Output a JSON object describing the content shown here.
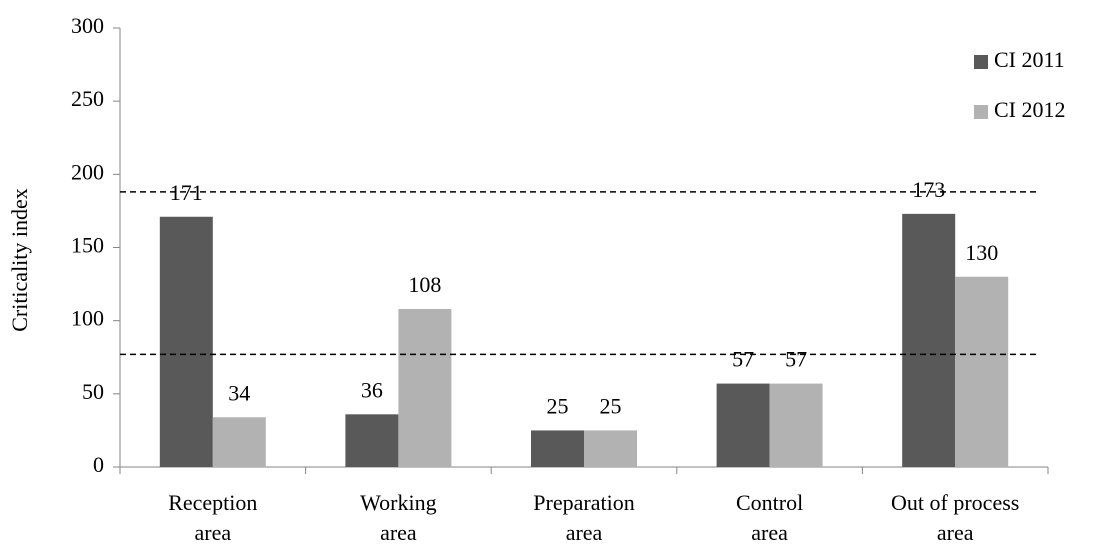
{
  "chart_data": {
    "type": "bar",
    "y_label": "Criticality index",
    "categories": [
      [
        "Reception",
        "area"
      ],
      [
        "Working",
        "area"
      ],
      [
        "Preparation",
        "area"
      ],
      [
        "Control",
        "area"
      ],
      [
        "Out of process",
        "area"
      ]
    ],
    "series": [
      {
        "name": "CI 2011",
        "color": "#595959",
        "values": [
          171,
          36,
          25,
          57,
          173
        ]
      },
      {
        "name": "CI 2012",
        "color": "#b2b2b2",
        "values": [
          34,
          108,
          25,
          57,
          130
        ]
      }
    ],
    "reference_lines": [
      188,
      77
    ],
    "ylim": [
      0,
      300
    ],
    "yticks": [
      0,
      50,
      100,
      150,
      200,
      250,
      300
    ],
    "legend": "top-right"
  }
}
